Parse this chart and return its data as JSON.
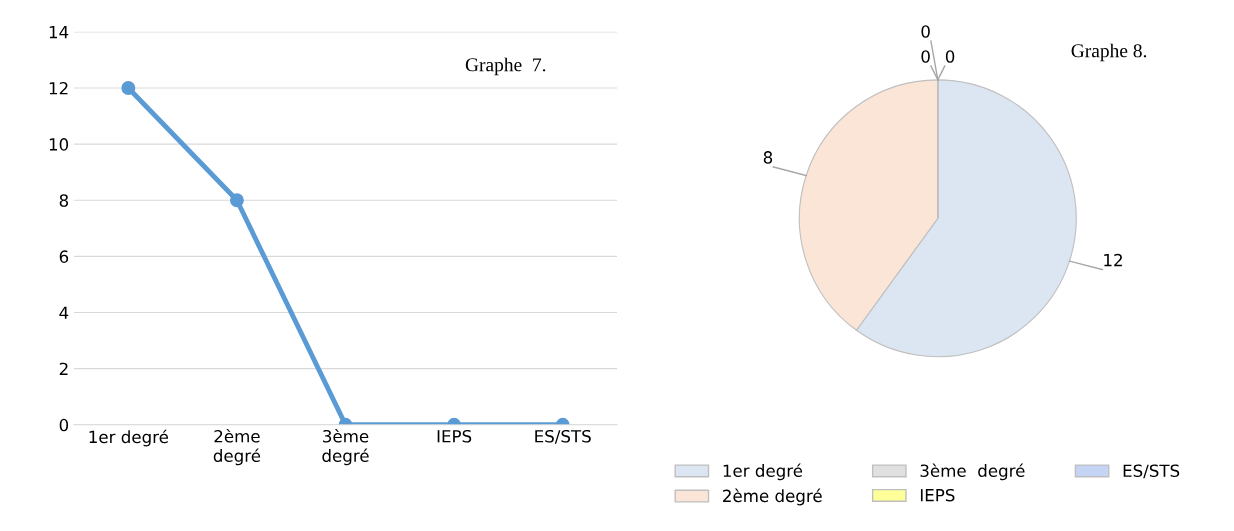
{
  "chart_data": [
    {
      "type": "line",
      "categories": [
        "1er degré",
        "2ème\ndegré",
        "3ème\ndegré",
        "IEPS",
        "ES/STS"
      ],
      "series": [
        {
          "color": "#5b9bd5",
          "values": [
            12,
            8,
            0,
            0,
            0
          ]
        }
      ],
      "ylim": [
        0,
        14
      ],
      "yticks": [
        0,
        2,
        4,
        6,
        8,
        10,
        12,
        14
      ],
      "grid": "y",
      "marker": "circle",
      "line_style": "solid",
      "legend": false,
      "annotations": [
        "Graphe  7."
      ]
    },
    {
      "type": "pie",
      "categories": [
        "1er degré",
        "2ème degré",
        "3ème  degré",
        "IEPS",
        "ES/STS"
      ],
      "values": [
        12,
        8,
        0,
        0,
        0
      ],
      "colors": [
        "#dce6f2",
        "#fbe5d6",
        "#e0e0e0",
        "#ffff99",
        "#c5d3f5"
      ],
      "value_labels": [
        "12",
        "8",
        "0",
        "0",
        "0"
      ],
      "legend": "bottom",
      "annotations": [
        "Graphe 8."
      ]
    }
  ]
}
